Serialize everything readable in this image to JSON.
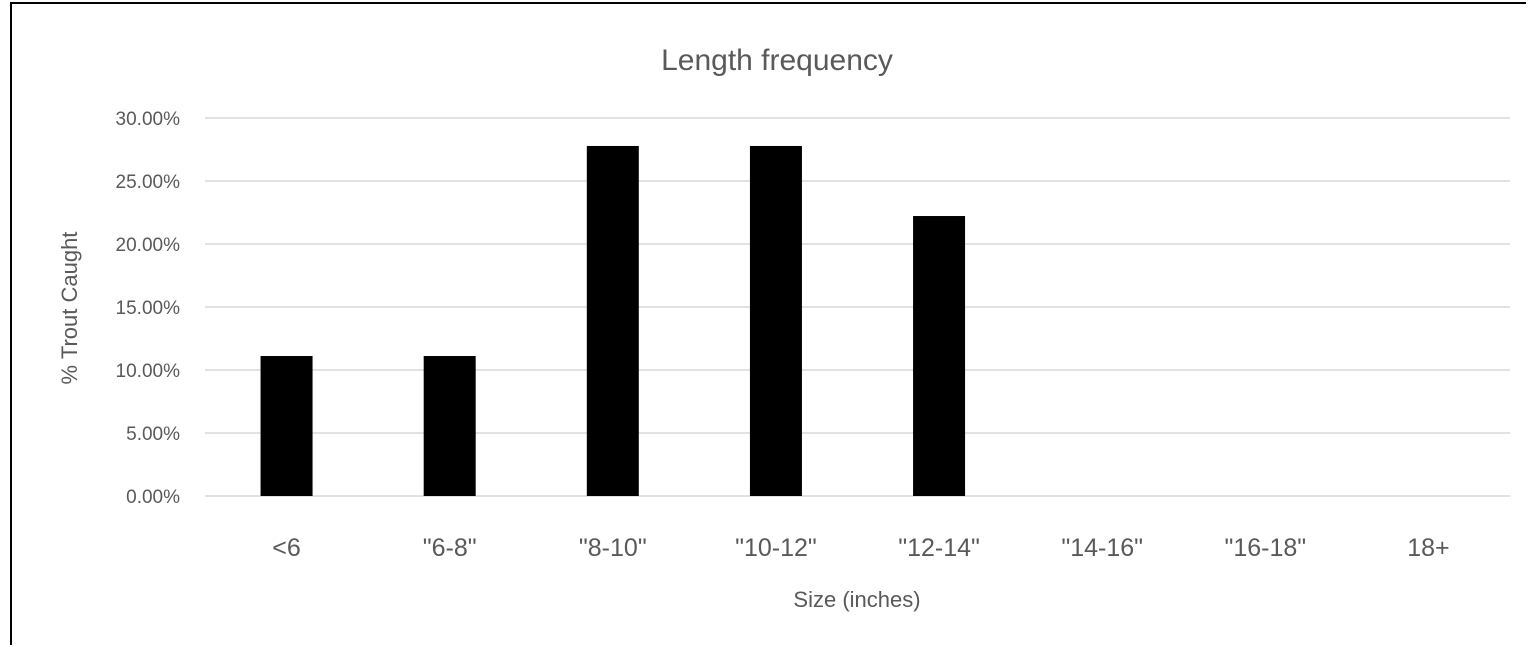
{
  "chart_data": {
    "type": "bar",
    "title": "Length frequency",
    "xlabel": "Size (inches)",
    "ylabel": "% Trout Caught",
    "categories": [
      "<6",
      "\"6-8\"",
      "\"8-10\"",
      "\"10-12\"",
      "\"12-14\"",
      "\"14-16\"",
      "\"16-18\"",
      "18+"
    ],
    "series": [
      {
        "values": [
          11.11,
          11.11,
          27.78,
          27.78,
          22.22,
          0,
          0,
          0
        ]
      }
    ],
    "y_ticks": [
      "0.00%",
      "5.00%",
      "10.00%",
      "15.00%",
      "20.00%",
      "25.00%",
      "30.00%"
    ],
    "y_tick_values": [
      0,
      5,
      10,
      15,
      20,
      25,
      30
    ],
    "ylim": [
      0,
      30
    ],
    "grid": true,
    "legend": "none",
    "colors": {
      "bar": "#000000",
      "grid": "#d9d9d9",
      "text": "#595959",
      "border": "#000000"
    }
  }
}
